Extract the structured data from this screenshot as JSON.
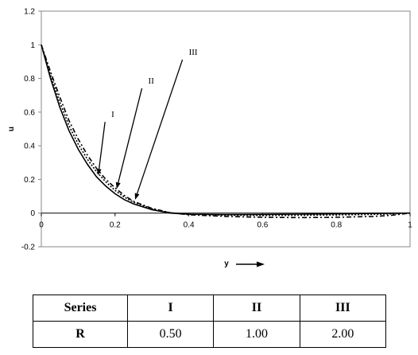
{
  "chart_data": {
    "type": "line",
    "xlabel": "y",
    "ylabel": "u",
    "xlim": [
      0,
      1
    ],
    "ylim": [
      -0.2,
      1.2
    ],
    "x_ticks": [
      "0",
      "0.2",
      "0.4",
      "0.6",
      "0.8",
      "1"
    ],
    "y_ticks": [
      "-0.2",
      "0",
      "0.2",
      "0.4",
      "0.6",
      "0.8",
      "1",
      "1.2"
    ],
    "grid": false,
    "series": [
      {
        "name": "I",
        "style": "solid",
        "x": [
          0,
          0.025,
          0.05,
          0.075,
          0.1,
          0.125,
          0.15,
          0.175,
          0.2,
          0.225,
          0.25,
          0.3,
          0.35,
          0.4,
          0.5,
          0.6,
          0.7,
          0.8,
          0.9,
          0.95,
          1.0
        ],
        "y": [
          1.0,
          0.8,
          0.63,
          0.49,
          0.38,
          0.29,
          0.215,
          0.16,
          0.115,
          0.08,
          0.055,
          0.02,
          0.0,
          -0.007,
          -0.009,
          -0.008,
          -0.006,
          -0.004,
          -0.002,
          -0.001,
          0.0
        ]
      },
      {
        "name": "II",
        "style": "dotted",
        "x": [
          0,
          0.025,
          0.05,
          0.075,
          0.1,
          0.125,
          0.15,
          0.175,
          0.2,
          0.225,
          0.25,
          0.3,
          0.35,
          0.4,
          0.5,
          0.6,
          0.7,
          0.8,
          0.9,
          0.95,
          1.0
        ],
        "y": [
          1.0,
          0.82,
          0.66,
          0.52,
          0.41,
          0.32,
          0.245,
          0.185,
          0.135,
          0.095,
          0.065,
          0.025,
          0.002,
          -0.006,
          -0.012,
          -0.014,
          -0.013,
          -0.011,
          -0.008,
          -0.005,
          0.0
        ]
      },
      {
        "name": "III",
        "style": "dashdot",
        "x": [
          0,
          0.025,
          0.05,
          0.075,
          0.1,
          0.125,
          0.15,
          0.175,
          0.2,
          0.225,
          0.25,
          0.3,
          0.35,
          0.4,
          0.5,
          0.6,
          0.7,
          0.8,
          0.9,
          0.95,
          1.0
        ],
        "y": [
          1.0,
          0.84,
          0.69,
          0.55,
          0.44,
          0.345,
          0.265,
          0.2,
          0.15,
          0.105,
          0.07,
          0.028,
          0.002,
          -0.01,
          -0.02,
          -0.025,
          -0.027,
          -0.025,
          -0.02,
          -0.013,
          0.0
        ]
      }
    ],
    "annotations": [
      {
        "text": "I",
        "series": "I"
      },
      {
        "text": "II",
        "series": "II"
      },
      {
        "text": "III",
        "series": "III"
      }
    ]
  },
  "table": {
    "header": [
      "Series",
      "I",
      "II",
      "III"
    ],
    "row_label": "R",
    "values": [
      "0.50",
      "1.00",
      "2.00"
    ]
  }
}
